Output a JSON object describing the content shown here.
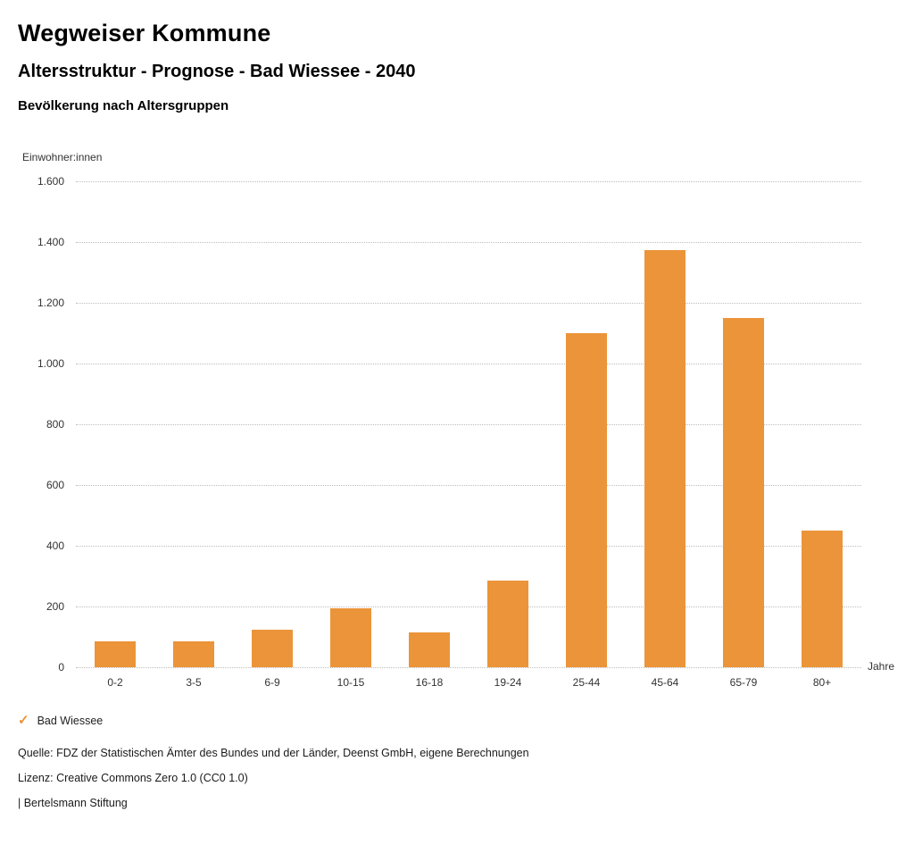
{
  "header": {
    "title": "Wegweiser Kommune",
    "subtitle": "Altersstruktur - Prognose - Bad Wiessee - 2040",
    "chart_heading": "Bevölkerung nach Altersgruppen"
  },
  "chart_data": {
    "type": "bar",
    "title": "Bevölkerung nach Altersgruppen",
    "ylabel": "Einwohner:innen",
    "xlabel": "Jahre",
    "categories": [
      "0-2",
      "3-5",
      "6-9",
      "10-15",
      "16-18",
      "19-24",
      "25-44",
      "45-64",
      "65-79",
      "80+"
    ],
    "series": [
      {
        "name": "Bad Wiessee",
        "values": [
          85,
          85,
          125,
          195,
          115,
          285,
          1100,
          1375,
          1150,
          450
        ]
      }
    ],
    "ylim": [
      0,
      1600
    ],
    "ytick_step": 200,
    "ytick_labels": [
      "0",
      "200",
      "400",
      "600",
      "800",
      "1.000",
      "1.200",
      "1.400",
      "1.600"
    ],
    "grid": true,
    "legend_position": "bottom",
    "bar_color": "#EB9439"
  },
  "legend": {
    "items": [
      {
        "label": "Bad Wiessee",
        "color": "#EB9439",
        "check_icon": "✓"
      }
    ]
  },
  "footer": {
    "source": "Quelle: FDZ der Statistischen Ämter des Bundes und der Länder, Deenst GmbH, eigene Berechnungen",
    "license": "Lizenz: Creative Commons Zero 1.0 (CC0 1.0)",
    "attribution": "| Bertelsmann Stiftung"
  }
}
